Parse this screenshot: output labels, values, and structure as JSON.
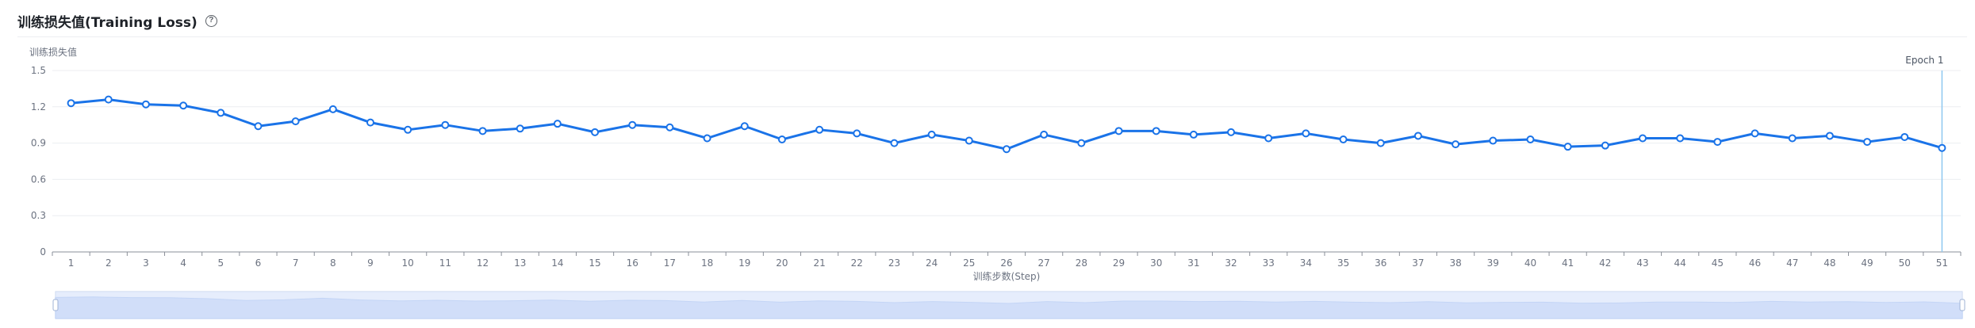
{
  "header": {
    "title": "训练损失值(Training Loss)",
    "help_icon": "question-circle-icon"
  },
  "chart_data": {
    "type": "line",
    "ylabel": "训练损失值",
    "xlabel": "训练步数(Step)",
    "ylim": [
      0,
      1.5
    ],
    "yticks": [
      "0",
      "0.3",
      "0.6",
      "0.9",
      "1.2",
      "1.5"
    ],
    "grid": true,
    "x": [
      1,
      2,
      3,
      4,
      5,
      6,
      7,
      8,
      9,
      10,
      11,
      12,
      13,
      14,
      15,
      16,
      17,
      18,
      19,
      20,
      21,
      22,
      23,
      24,
      25,
      26,
      27,
      28,
      29,
      30,
      31,
      32,
      33,
      34,
      35,
      36,
      37,
      38,
      39,
      40,
      41,
      42,
      43,
      44,
      45,
      46,
      47,
      48,
      49,
      50,
      51
    ],
    "series": [
      {
        "values": [
          1.23,
          1.26,
          1.22,
          1.21,
          1.15,
          1.04,
          1.08,
          1.18,
          1.07,
          1.01,
          1.05,
          1.0,
          1.02,
          1.06,
          0.99,
          1.05,
          1.03,
          0.94,
          1.04,
          0.93,
          1.01,
          0.98,
          0.9,
          0.97,
          0.92,
          0.85,
          0.97,
          0.9,
          1.0,
          1.0,
          0.97,
          0.99,
          0.94,
          0.98,
          0.93,
          0.9,
          0.96,
          0.89,
          0.92,
          0.93,
          0.87,
          0.88,
          0.94,
          0.94,
          0.91,
          0.98,
          0.94,
          0.96,
          0.91,
          0.95,
          0.86
        ],
        "color": "#1a73e8"
      }
    ],
    "marker": {
      "label": "Epoch 1",
      "x": 51,
      "color": "#8ec8f0"
    },
    "data_zoom": {
      "range": [
        0,
        1
      ],
      "fill": "#dbe6fb",
      "border": "#c9d6ee"
    }
  }
}
